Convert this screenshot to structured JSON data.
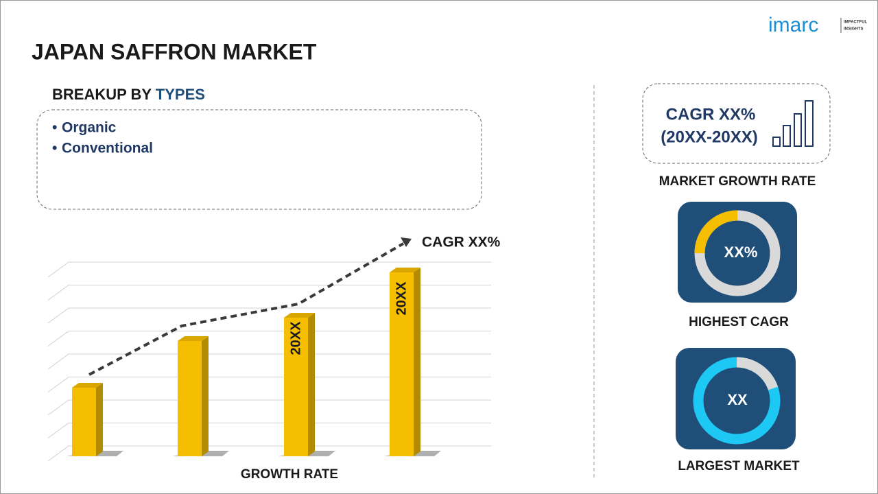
{
  "header": {
    "logo": "imarc",
    "tagline": [
      "IMPACTFUL",
      "INSIGHTS"
    ],
    "title": "JAPAN SAFFRON MARKET"
  },
  "breakup": {
    "heading": [
      "BREAKUP BY",
      "TYPES"
    ],
    "items": [
      "Organic",
      "Conventional"
    ]
  },
  "growth_chart": {
    "bar_labels": [
      "20XX",
      "20XX"
    ],
    "trend_label": "CAGR XX%",
    "caption": "GROWTH RATE"
  },
  "side_panels": [
    {
      "lines": [
        "CAGR XX%",
        "(20XX-20XX)"
      ],
      "caption": "MARKET GROWTH RATE"
    },
    {
      "center": "XX%",
      "caption": "HIGHEST CAGR"
    },
    {
      "center": "XX",
      "caption": "LARGEST MARKET"
    }
  ]
}
